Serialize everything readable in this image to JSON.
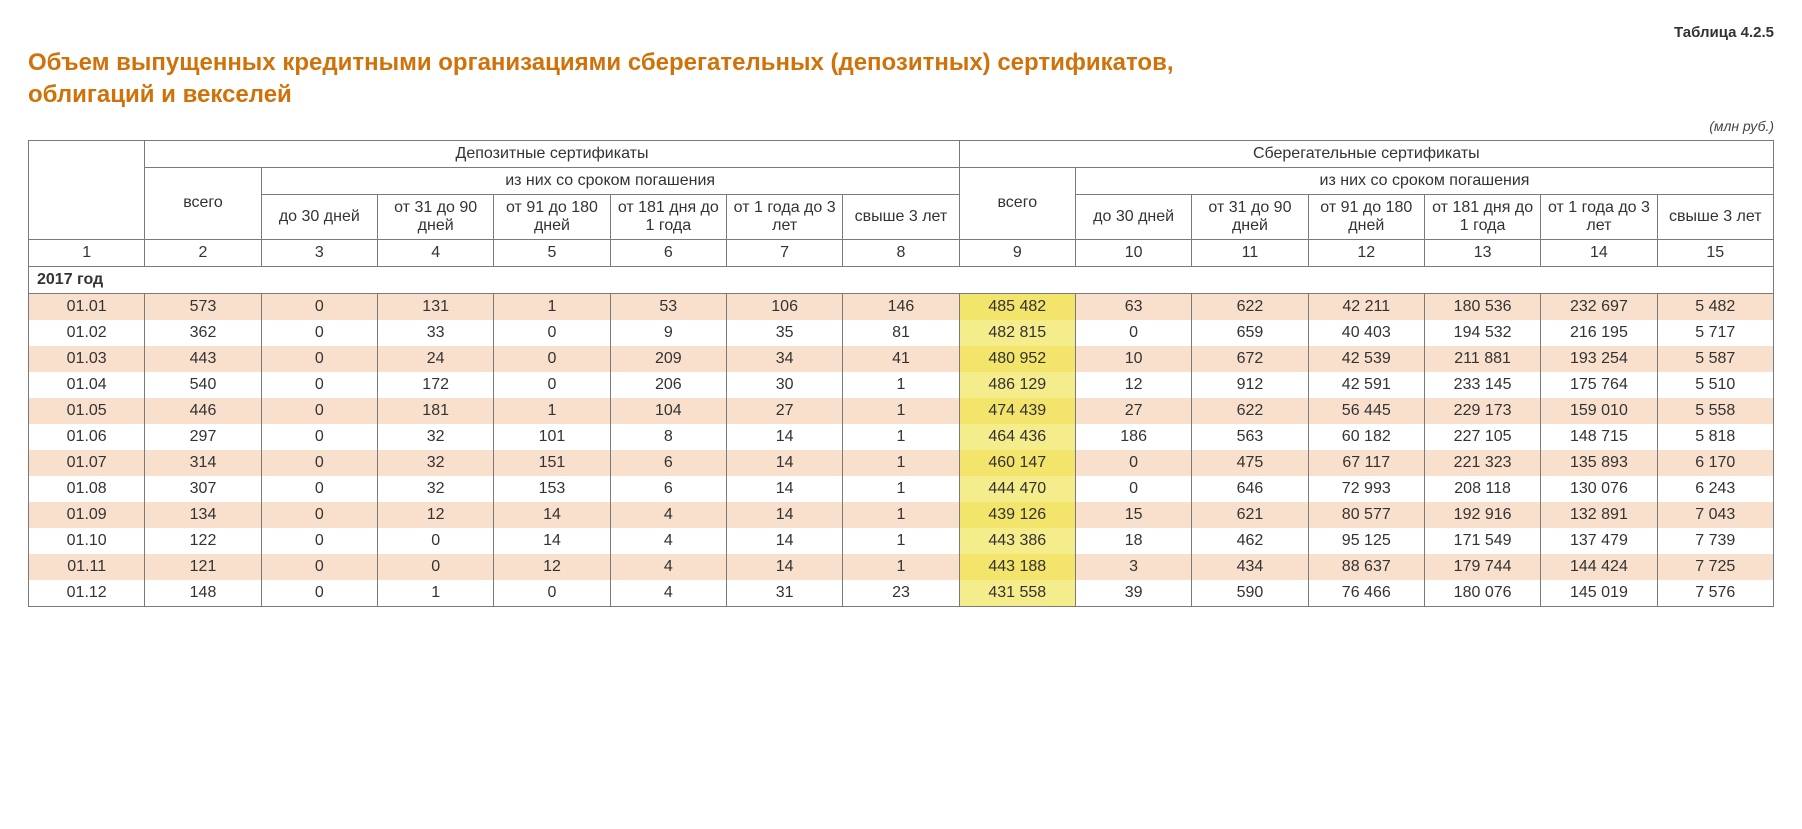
{
  "meta": {
    "table_number": "Таблица 4.2.5",
    "title_line1": "Объем выпущенных кредитными организациями сберегательных (депозитных) сертификатов,",
    "title_line2": "облигаций и векселей",
    "unit": "(млн руб.)"
  },
  "styling": {
    "title_color": "#d0720a",
    "title_fontsize_pt": 18,
    "body_font": "Arial",
    "border_color": "#7a7a7a",
    "row_shade_color": "#f9e0cd",
    "highlight_color": "#f5ec8b",
    "highlight_shade_color": "#f3e46b",
    "background_color": "#ffffff",
    "text_color": "#333333",
    "cell_fontsize_pt": 12,
    "highlight_column_index": 8
  },
  "header": {
    "group1": "Депозитные сертификаты",
    "group2": "Сберегательные сертификаты",
    "sub_of_which": "из них со сроком погашения",
    "total": "всего",
    "maturities": [
      "до 30 дней",
      "от 31 до 90 дней",
      "от 91 до 180 дней",
      "от 181 дня до 1 года",
      "от 1 года до 3 лет",
      "свыше 3 лет"
    ],
    "col_numbers": [
      "1",
      "2",
      "3",
      "4",
      "5",
      "6",
      "7",
      "8",
      "9",
      "10",
      "11",
      "12",
      "13",
      "14",
      "15"
    ]
  },
  "section_year": "2017 год",
  "rows": [
    {
      "date": "01.01",
      "c": [
        "573",
        "0",
        "131",
        "1",
        "53",
        "106",
        "146",
        "485 482",
        "63",
        "622",
        "42 211",
        "180 536",
        "232 697",
        "5 482"
      ]
    },
    {
      "date": "01.02",
      "c": [
        "362",
        "0",
        "33",
        "0",
        "9",
        "35",
        "81",
        "482 815",
        "0",
        "659",
        "40 403",
        "194 532",
        "216 195",
        "5 717"
      ]
    },
    {
      "date": "01.03",
      "c": [
        "443",
        "0",
        "24",
        "0",
        "209",
        "34",
        "41",
        "480 952",
        "10",
        "672",
        "42 539",
        "211 881",
        "193 254",
        "5 587"
      ]
    },
    {
      "date": "01.04",
      "c": [
        "540",
        "0",
        "172",
        "0",
        "206",
        "30",
        "1",
        "486 129",
        "12",
        "912",
        "42 591",
        "233 145",
        "175 764",
        "5 510"
      ]
    },
    {
      "date": "01.05",
      "c": [
        "446",
        "0",
        "181",
        "1",
        "104",
        "27",
        "1",
        "474 439",
        "27",
        "622",
        "56 445",
        "229 173",
        "159 010",
        "5 558"
      ]
    },
    {
      "date": "01.06",
      "c": [
        "297",
        "0",
        "32",
        "101",
        "8",
        "14",
        "1",
        "464 436",
        "186",
        "563",
        "60 182",
        "227 105",
        "148 715",
        "5 818"
      ]
    },
    {
      "date": "01.07",
      "c": [
        "314",
        "0",
        "32",
        "151",
        "6",
        "14",
        "1",
        "460 147",
        "0",
        "475",
        "67 117",
        "221 323",
        "135 893",
        "6 170"
      ]
    },
    {
      "date": "01.08",
      "c": [
        "307",
        "0",
        "32",
        "153",
        "6",
        "14",
        "1",
        "444 470",
        "0",
        "646",
        "72 993",
        "208 118",
        "130 076",
        "6 243"
      ]
    },
    {
      "date": "01.09",
      "c": [
        "134",
        "0",
        "12",
        "14",
        "4",
        "14",
        "1",
        "439 126",
        "15",
        "621",
        "80 577",
        "192 916",
        "132 891",
        "7 043"
      ]
    },
    {
      "date": "01.10",
      "c": [
        "122",
        "0",
        "0",
        "14",
        "4",
        "14",
        "1",
        "443 386",
        "18",
        "462",
        "95 125",
        "171 549",
        "137 479",
        "7 739"
      ]
    },
    {
      "date": "01.11",
      "c": [
        "121",
        "0",
        "0",
        "12",
        "4",
        "14",
        "1",
        "443 188",
        "3",
        "434",
        "88 637",
        "179 744",
        "144 424",
        "7 725"
      ]
    },
    {
      "date": "01.12",
      "c": [
        "148",
        "0",
        "1",
        "0",
        "4",
        "31",
        "23",
        "431 558",
        "39",
        "590",
        "76 466",
        "180 076",
        "145 019",
        "7 576"
      ]
    }
  ]
}
